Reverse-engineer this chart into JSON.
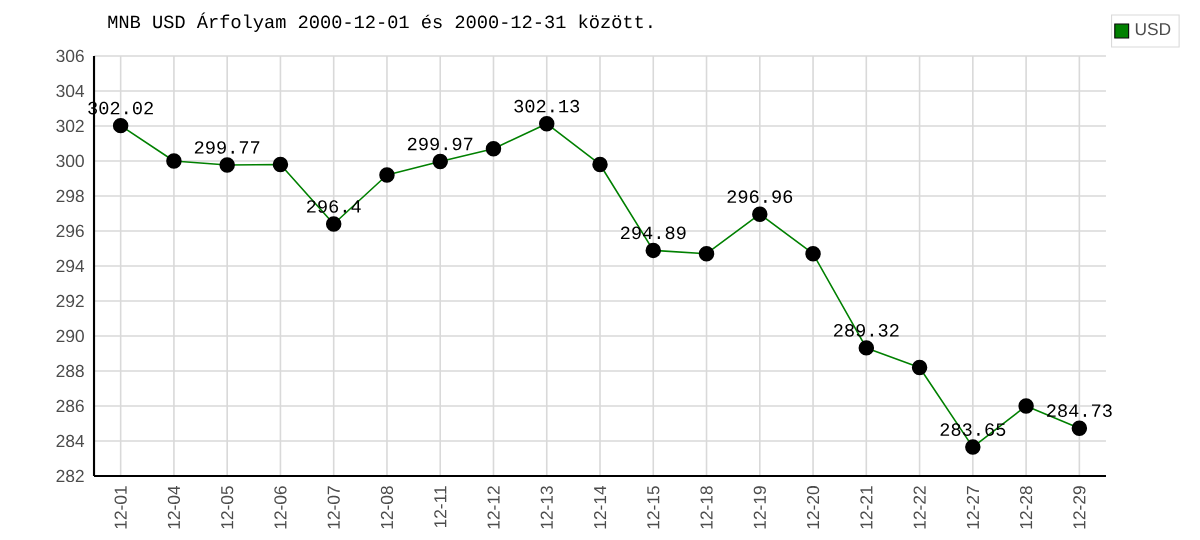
{
  "chart_data": {
    "type": "line",
    "title": "MNB USD Árfolyam 2000-12-01 és 2000-12-31 között.",
    "categories": [
      "12-01",
      "12-04",
      "12-05",
      "12-06",
      "12-07",
      "12-08",
      "12-11",
      "12-12",
      "12-13",
      "12-14",
      "12-15",
      "12-18",
      "12-19",
      "12-20",
      "12-21",
      "12-22",
      "12-27",
      "12-28",
      "12-29"
    ],
    "series": [
      {
        "name": "USD",
        "color": "#008000",
        "values": [
          302.02,
          300.0,
          299.77,
          299.8,
          296.4,
          299.2,
          299.97,
          300.7,
          302.13,
          299.8,
          294.89,
          294.7,
          296.96,
          294.7,
          289.32,
          288.2,
          283.65,
          286.0,
          284.73
        ],
        "value_labels": [
          "302.02",
          null,
          "299.77",
          null,
          "296.4",
          null,
          "299.97",
          null,
          "302.13",
          null,
          "294.89",
          null,
          "296.96",
          null,
          "289.32",
          null,
          "283.65",
          null,
          "284.73"
        ]
      }
    ],
    "ylim": [
      282,
      306
    ],
    "yticks": [
      282,
      284,
      286,
      288,
      290,
      292,
      294,
      296,
      298,
      300,
      302,
      304,
      306
    ],
    "grid": true,
    "legend": "top right",
    "marker": "circle",
    "line_style": "solid"
  }
}
